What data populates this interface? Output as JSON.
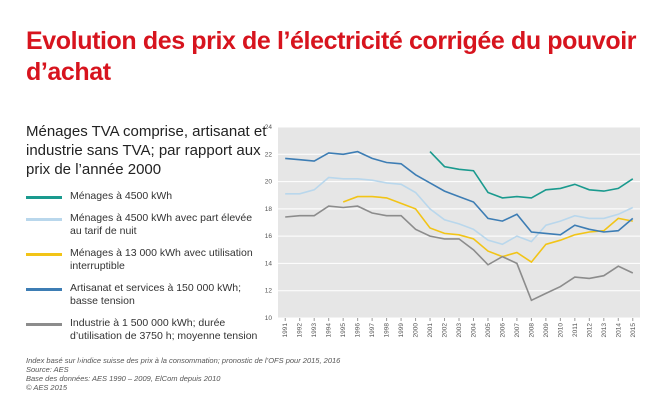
{
  "chart_data": {
    "type": "line",
    "title": "Evolution des prix de l’électricité corrigée du pouvoir d’achat",
    "subtitle": "Ménages TVA comprise, artisanat et industrie sans TVA; par rapport aux prix de l’année 2000",
    "notes": [
      "Index basé sur l›indice suisse des prix à la consommation; pronostic de l’OFS pour 2015, 2016",
      "Source: AES",
      "Base des données: AES 1990 – 2009, ElCom depuis 2010",
      "© AES 2015"
    ],
    "categories": [
      "1991",
      "1992",
      "1993",
      "1994",
      "1995",
      "1996",
      "1997",
      "1998",
      "1999",
      "2000",
      "2001",
      "2002",
      "2003",
      "2004",
      "2005",
      "2006",
      "2007",
      "2008",
      "2009",
      "2010",
      "2011",
      "2012",
      "2013",
      "2014",
      "2015"
    ],
    "ylim": [
      10,
      24
    ],
    "yticks": [
      10,
      12,
      14,
      16,
      18,
      20,
      22,
      24
    ],
    "grid": true,
    "series": [
      {
        "name": "Ménages à 4500 kWh",
        "color": "#1a9a8e",
        "values": [
          null,
          null,
          null,
          null,
          null,
          null,
          null,
          null,
          null,
          null,
          22.2,
          21.1,
          20.9,
          20.8,
          19.2,
          18.8,
          18.9,
          18.8,
          19.4,
          19.5,
          19.8,
          19.4,
          19.3,
          19.5,
          20.2
        ]
      },
      {
        "name": "Ménages à 4500 kWh avec part élevée au tarif de nuit",
        "color": "#b9d7ec",
        "values": [
          19.1,
          19.1,
          19.4,
          20.3,
          20.2,
          20.2,
          20.1,
          19.9,
          19.8,
          19.2,
          18.0,
          17.2,
          16.9,
          16.5,
          15.7,
          15.4,
          16.0,
          15.6,
          16.8,
          17.1,
          17.5,
          17.3,
          17.3,
          17.6,
          18.1
        ]
      },
      {
        "name": "Ménages à 13 000 kWh avec utilisation interruptible",
        "color": "#f2c417",
        "values": [
          null,
          null,
          null,
          null,
          18.5,
          18.9,
          18.9,
          18.8,
          18.4,
          18.0,
          16.6,
          16.2,
          16.1,
          15.8,
          14.9,
          14.5,
          14.8,
          14.1,
          15.4,
          15.7,
          16.1,
          16.3,
          16.4,
          17.3,
          17.1
        ]
      },
      {
        "name": "Artisanat et services à 150 000 kWh; basse tension",
        "color": "#3d7db4",
        "values": [
          21.7,
          21.6,
          21.5,
          22.1,
          22.0,
          22.2,
          21.7,
          21.4,
          21.3,
          20.5,
          19.9,
          19.3,
          18.9,
          18.5,
          17.3,
          17.1,
          17.6,
          16.3,
          16.2,
          16.1,
          16.8,
          16.5,
          16.3,
          16.4,
          17.3
        ]
      },
      {
        "name": "Industrie à 1 500 000 kWh; durée d’utilisation de 3750 h; moyenne tension",
        "color": "#8c8c8c",
        "values": [
          17.4,
          17.5,
          17.5,
          18.2,
          18.1,
          18.2,
          17.7,
          17.5,
          17.5,
          16.5,
          16.0,
          15.8,
          15.8,
          15.0,
          13.9,
          14.5,
          14.0,
          11.3,
          11.8,
          12.3,
          13.0,
          12.9,
          13.1,
          13.8,
          13.3
        ]
      }
    ]
  }
}
